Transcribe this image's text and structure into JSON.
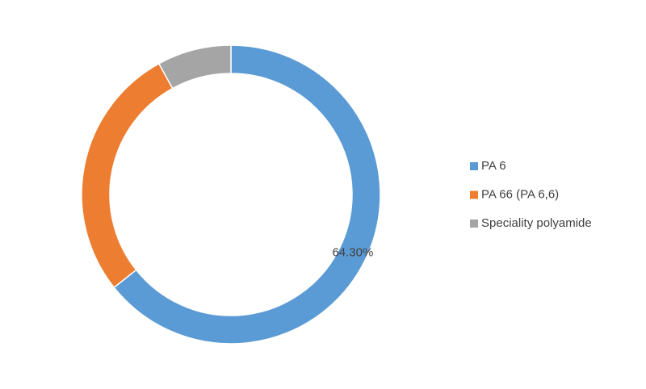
{
  "chart_data": {
    "type": "donut",
    "series": [
      {
        "name": "PA 6",
        "color": "#5b9bd5",
        "values": [
          64.3
        ],
        "value_labels": [
          "64.30%"
        ]
      },
      {
        "name": "PA 66 (PA 6,6)",
        "color": "#ed7d31",
        "values": [
          27.7
        ]
      },
      {
        "name": "Speciality polyamide",
        "color": "#a5a5a5",
        "values": [
          8.0
        ]
      }
    ],
    "legend": "right"
  }
}
